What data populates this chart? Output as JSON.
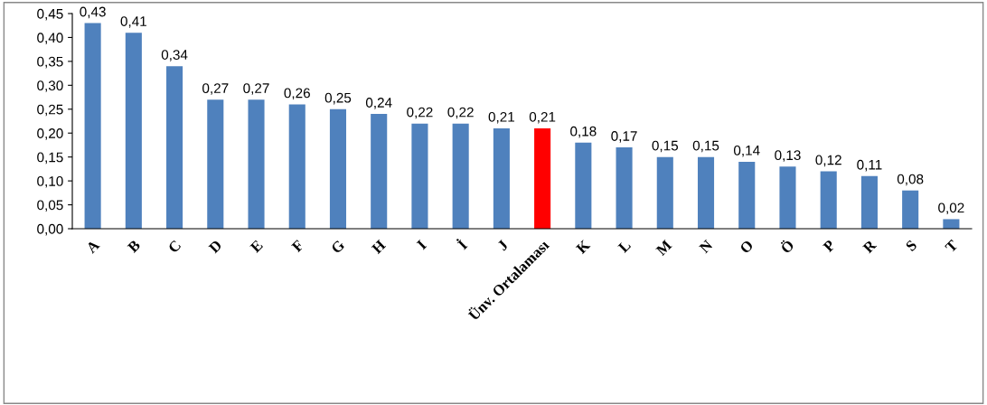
{
  "chart_data": {
    "type": "bar",
    "categories": [
      "A",
      "B",
      "C",
      "D",
      "E",
      "F",
      "G",
      "H",
      "I",
      "İ",
      "J",
      "Ünv. Ortalaması",
      "K",
      "L",
      "M",
      "N",
      "O",
      "Ö",
      "P",
      "R",
      "S",
      "T"
    ],
    "values": [
      0.43,
      0.41,
      0.34,
      0.27,
      0.27,
      0.26,
      0.25,
      0.24,
      0.22,
      0.22,
      0.21,
      0.21,
      0.18,
      0.17,
      0.15,
      0.15,
      0.14,
      0.13,
      0.12,
      0.11,
      0.08,
      0.02
    ],
    "value_labels": [
      "0,43",
      "0,41",
      "0,34",
      "0,27",
      "0,27",
      "0,26",
      "0,25",
      "0,24",
      "0,22",
      "0,22",
      "0,21",
      "0,21",
      "0,18",
      "0,17",
      "0,15",
      "0,15",
      "0,14",
      "0,13",
      "0,12",
      "0,11",
      "0,08",
      "0,02"
    ],
    "colors": [
      "#4f81bd",
      "#4f81bd",
      "#4f81bd",
      "#4f81bd",
      "#4f81bd",
      "#4f81bd",
      "#4f81bd",
      "#4f81bd",
      "#4f81bd",
      "#4f81bd",
      "#4f81bd",
      "#ff0000",
      "#4f81bd",
      "#4f81bd",
      "#4f81bd",
      "#4f81bd",
      "#4f81bd",
      "#4f81bd",
      "#4f81bd",
      "#4f81bd",
      "#4f81bd",
      "#4f81bd"
    ],
    "ylim": [
      0,
      0.45
    ],
    "yticks": [
      {
        "value": 0,
        "label": "0,00"
      },
      {
        "value": 0.05,
        "label": "0,05"
      },
      {
        "value": 0.1,
        "label": "0,10"
      },
      {
        "value": 0.15,
        "label": "0,15"
      },
      {
        "value": 0.2,
        "label": "0,20"
      },
      {
        "value": 0.25,
        "label": "0,25"
      },
      {
        "value": 0.3,
        "label": "0,30"
      },
      {
        "value": 0.35,
        "label": "0,35"
      },
      {
        "value": 0.4,
        "label": "0,40"
      },
      {
        "value": 0.45,
        "label": "0,45"
      }
    ],
    "grid": false,
    "legend": false
  }
}
